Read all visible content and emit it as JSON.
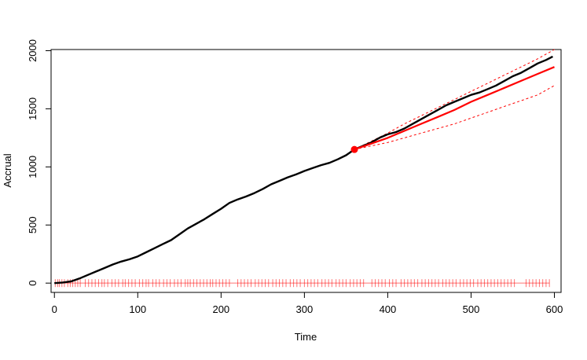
{
  "chart_data": {
    "type": "line",
    "title": "",
    "xlabel": "Time",
    "ylabel": "Accrual",
    "xlim": [
      -4,
      608
    ],
    "ylim": [
      -80,
      2010
    ],
    "x_ticks": [
      0,
      100,
      200,
      300,
      400,
      500,
      600
    ],
    "y_ticks": [
      0,
      500,
      1000,
      1500,
      2000
    ],
    "grid": false,
    "legend": "none",
    "colors": {
      "observed": "#000000",
      "predicted": "#ff0000",
      "interval": "#ff0000",
      "events": "#ff0000"
    },
    "series": [
      {
        "role": "observed",
        "x": [
          0,
          10,
          20,
          30,
          40,
          50,
          60,
          70,
          80,
          90,
          100,
          110,
          120,
          130,
          140,
          150,
          160,
          170,
          180,
          190,
          200,
          210,
          220,
          230,
          240,
          250,
          260,
          270,
          280,
          290,
          300,
          310,
          320,
          330,
          340,
          350,
          360,
          370,
          380,
          390,
          400,
          410,
          420,
          430,
          440,
          450,
          460,
          470,
          480,
          490,
          500,
          510,
          520,
          530,
          540,
          550,
          560,
          570,
          580,
          590,
          598
        ],
        "y": [
          0,
          5,
          15,
          40,
          70,
          100,
          130,
          160,
          185,
          205,
          230,
          265,
          300,
          335,
          370,
          420,
          470,
          510,
          550,
          595,
          640,
          690,
          720,
          745,
          775,
          810,
          850,
          880,
          910,
          935,
          965,
          990,
          1015,
          1035,
          1065,
          1100,
          1150,
          1180,
          1210,
          1250,
          1280,
          1300,
          1330,
          1370,
          1410,
          1450,
          1490,
          1530,
          1560,
          1590,
          1620,
          1640,
          1670,
          1700,
          1740,
          1780,
          1810,
          1850,
          1890,
          1920,
          1950
        ]
      },
      {
        "role": "predicted",
        "x": [
          360,
          380,
          400,
          420,
          440,
          460,
          480,
          500,
          520,
          540,
          560,
          580,
          600
        ],
        "y": [
          1150,
          1200,
          1250,
          1310,
          1370,
          1430,
          1490,
          1560,
          1620,
          1680,
          1740,
          1800,
          1860
        ]
      },
      {
        "role": "upper-bound",
        "x": [
          360,
          380,
          400,
          420,
          440,
          460,
          480,
          500,
          520,
          540,
          560,
          580,
          600
        ],
        "y": [
          1150,
          1220,
          1290,
          1370,
          1440,
          1510,
          1580,
          1650,
          1720,
          1790,
          1860,
          1930,
          2010
        ]
      },
      {
        "role": "lower-bound",
        "x": [
          360,
          380,
          400,
          420,
          440,
          460,
          480,
          500,
          520,
          540,
          560,
          580,
          600
        ],
        "y": [
          1150,
          1180,
          1210,
          1250,
          1290,
          1330,
          1370,
          1420,
          1470,
          1520,
          1570,
          1620,
          1700
        ]
      }
    ],
    "marker": {
      "x": 360,
      "y": 1150
    },
    "event_marks": {
      "y": 0,
      "x": [
        1,
        4,
        6,
        9,
        12,
        16,
        19,
        22,
        25,
        28,
        31,
        37,
        41,
        45,
        49,
        53,
        57,
        60,
        64,
        69,
        73,
        77,
        82,
        85,
        89,
        93,
        97,
        102,
        106,
        110,
        113,
        118,
        122,
        126,
        131,
        135,
        139,
        144,
        148,
        152,
        157,
        160,
        163,
        167,
        171,
        175,
        179,
        183,
        187,
        190,
        194,
        198,
        202,
        206,
        210,
        220,
        224,
        228,
        232,
        236,
        241,
        245,
        249,
        253,
        257,
        262,
        266,
        270,
        274,
        278,
        283,
        287,
        291,
        295,
        300,
        304,
        308,
        312,
        316,
        321,
        325,
        329,
        333,
        338,
        342,
        346,
        350,
        355,
        359,
        363,
        367,
        371,
        381,
        385,
        389,
        393,
        397,
        402,
        406,
        410,
        416,
        420,
        424,
        428,
        432,
        436,
        441,
        445,
        449,
        453,
        457,
        461,
        466,
        470,
        474,
        478,
        482,
        487,
        491,
        495,
        499,
        503,
        508,
        512,
        516,
        520,
        524,
        528,
        532,
        536,
        540,
        544,
        548,
        552,
        566,
        570,
        574,
        578,
        582,
        586,
        590,
        594
      ]
    }
  }
}
